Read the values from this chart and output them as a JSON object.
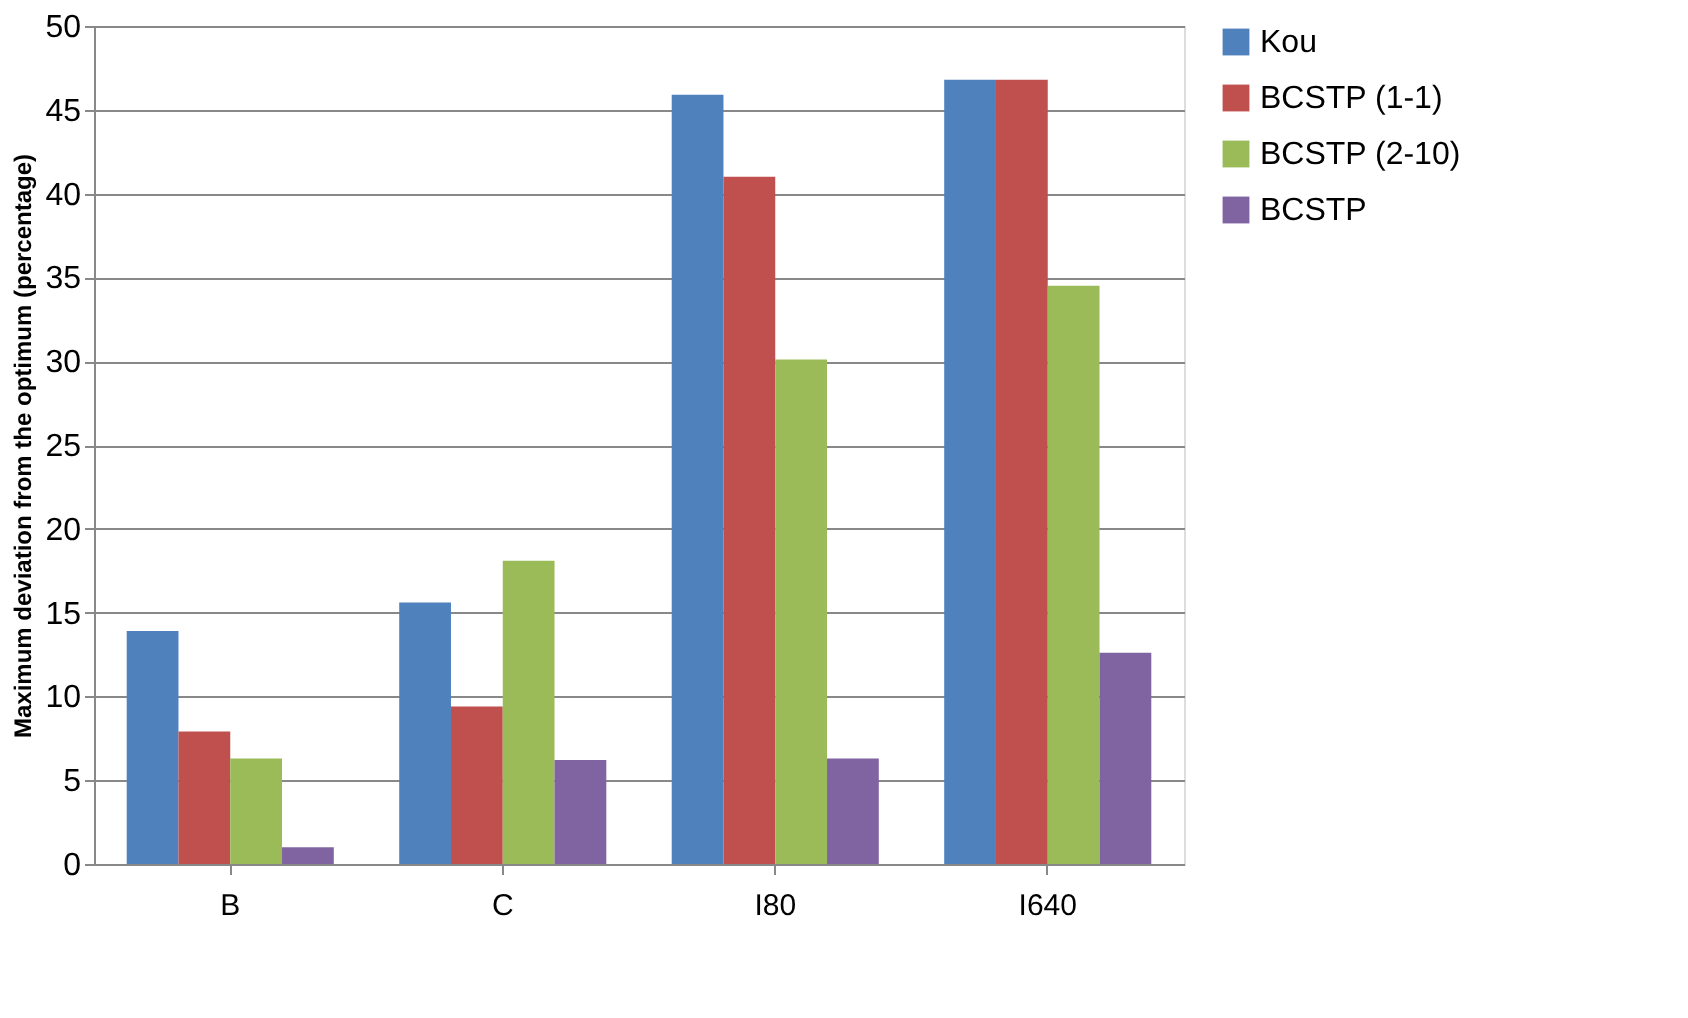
{
  "chart_data": {
    "type": "bar",
    "ylabel": "Maximum  deviation from the optimum (percentage)",
    "categories": [
      "B",
      "C",
      "I80",
      "I640"
    ],
    "series": [
      {
        "name": "Kou",
        "color": "#4f81bd",
        "values": [
          13.9,
          15.6,
          45.9,
          46.8
        ]
      },
      {
        "name": "BCSTP (1-1)",
        "color": "#c0504d",
        "values": [
          7.9,
          9.4,
          41.0,
          46.8
        ]
      },
      {
        "name": "BCSTP (2-10)",
        "color": "#9bbb59",
        "values": [
          6.3,
          18.1,
          30.1,
          34.5
        ]
      },
      {
        "name": "BCSTP",
        "color": "#8064a2",
        "values": [
          1.0,
          6.2,
          6.3,
          12.6
        ]
      }
    ],
    "ylim": [
      0,
      50
    ],
    "yticks": [
      0,
      5,
      10,
      15,
      20,
      25,
      30,
      35,
      40,
      45,
      50
    ],
    "grid": "y",
    "legend": "right"
  }
}
